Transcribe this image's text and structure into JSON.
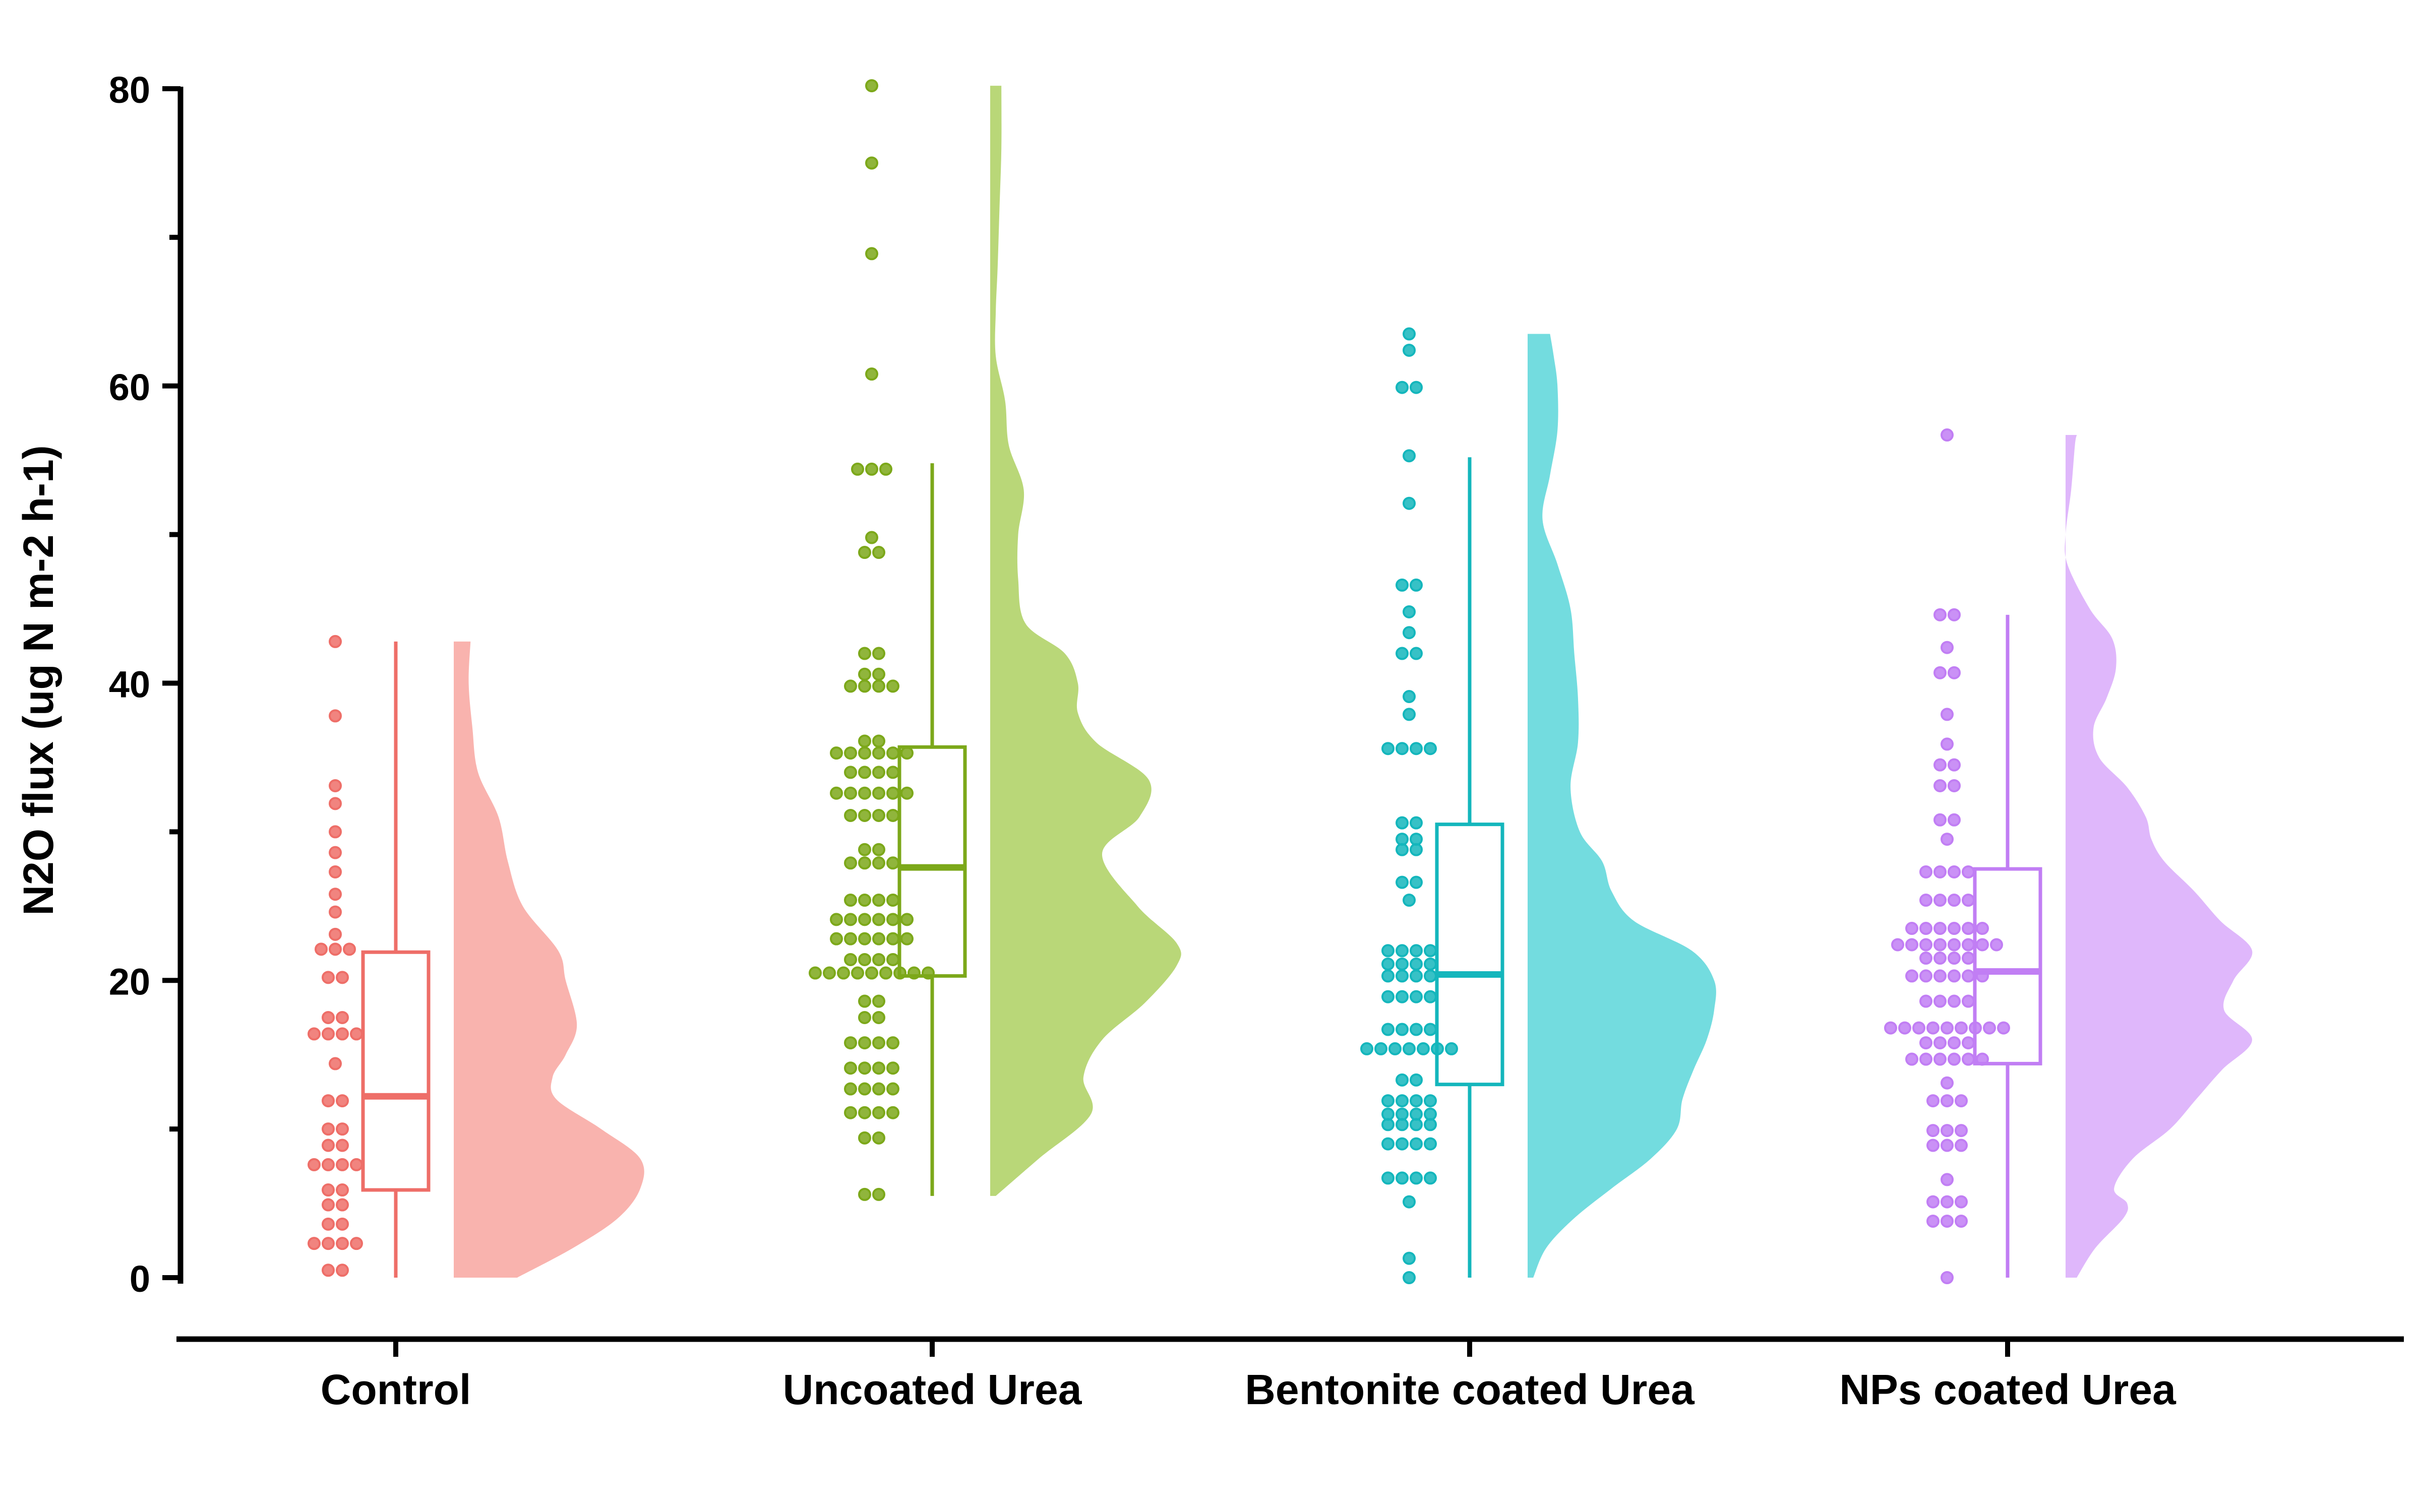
{
  "chart_data": {
    "type": "raincloud",
    "title": "",
    "xlabel": "",
    "ylabel": "N2O flux (ug N m-2 h-1)",
    "ylim": [
      0,
      80
    ],
    "yticks": [
      0,
      20,
      40,
      60,
      80
    ],
    "yticks_minor_step": 10,
    "grid": false,
    "legend": "none",
    "categories": [
      "Control",
      "Uncoated Urea",
      "Bentonite coated Urea",
      "NPs coated Urea"
    ],
    "series": [
      {
        "name": "Control",
        "color": "#ee6e68",
        "violin_color": "#f9b3ae",
        "box": {
          "min": 0.0,
          "q1": 5.9,
          "median": 12.2,
          "q3": 21.9,
          "max": 42.8
        },
        "violin_range": [
          0,
          42.8
        ],
        "density_profile": [
          [
            0,
            0.34
          ],
          [
            2,
            0.64
          ],
          [
            4,
            0.88
          ],
          [
            6,
            1.0
          ],
          [
            8,
            1.0
          ],
          [
            10,
            0.79
          ],
          [
            12,
            0.55
          ],
          [
            13.5,
            0.53
          ],
          [
            15,
            0.6
          ],
          [
            17,
            0.66
          ],
          [
            20,
            0.6
          ],
          [
            22,
            0.56
          ],
          [
            25,
            0.37
          ],
          [
            28,
            0.29
          ],
          [
            31,
            0.24
          ],
          [
            34,
            0.13
          ],
          [
            37,
            0.1
          ],
          [
            40,
            0.08
          ],
          [
            42.8,
            0.09
          ]
        ],
        "points": [
          {
            "y": 0.5,
            "n": 2
          },
          {
            "y": 2.3,
            "n": 4
          },
          {
            "y": 3.6,
            "n": 2
          },
          {
            "y": 4.9,
            "n": 2
          },
          {
            "y": 5.9,
            "n": 2
          },
          {
            "y": 7.6,
            "n": 4
          },
          {
            "y": 8.9,
            "n": 2
          },
          {
            "y": 10.0,
            "n": 2
          },
          {
            "y": 11.9,
            "n": 2
          },
          {
            "y": 14.4,
            "n": 1
          },
          {
            "y": 16.4,
            "n": 4
          },
          {
            "y": 17.5,
            "n": 2
          },
          {
            "y": 20.2,
            "n": 2
          },
          {
            "y": 22.1,
            "n": 3
          },
          {
            "y": 23.1,
            "n": 1
          },
          {
            "y": 24.6,
            "n": 1
          },
          {
            "y": 25.8,
            "n": 1
          },
          {
            "y": 27.3,
            "n": 1
          },
          {
            "y": 28.6,
            "n": 1
          },
          {
            "y": 30.0,
            "n": 1
          },
          {
            "y": 31.9,
            "n": 1
          },
          {
            "y": 33.1,
            "n": 1
          },
          {
            "y": 37.8,
            "n": 1
          },
          {
            "y": 42.8,
            "n": 1
          }
        ]
      },
      {
        "name": "Uncoated Urea",
        "color": "#7ca81a",
        "violin_color": "#b9d778",
        "box": {
          "min": 5.5,
          "q1": 20.3,
          "median": 27.6,
          "q3": 35.7,
          "max": 54.8
        },
        "violin_range": [
          5.5,
          80.2
        ],
        "density_profile": [
          [
            5.5,
            0.03
          ],
          [
            8,
            0.26
          ],
          [
            11,
            0.54
          ],
          [
            13.5,
            0.5
          ],
          [
            16,
            0.6
          ],
          [
            18.5,
            0.83
          ],
          [
            21,
            1.0
          ],
          [
            22.5,
            1.0
          ],
          [
            25,
            0.79
          ],
          [
            28.5,
            0.6
          ],
          [
            31,
            0.8
          ],
          [
            33.5,
            0.85
          ],
          [
            36,
            0.57
          ],
          [
            38,
            0.47
          ],
          [
            40,
            0.47
          ],
          [
            42,
            0.4
          ],
          [
            44,
            0.19
          ],
          [
            47,
            0.15
          ],
          [
            50,
            0.15
          ],
          [
            53,
            0.18
          ],
          [
            56,
            0.1
          ],
          [
            59,
            0.08
          ],
          [
            62,
            0.03
          ],
          [
            65,
            0.03
          ],
          [
            68,
            0.04
          ],
          [
            72,
            0.05
          ],
          [
            76,
            0.06
          ],
          [
            80.2,
            0.06
          ]
        ],
        "points": [
          {
            "y": 5.6,
            "n": 2
          },
          {
            "y": 9.4,
            "n": 2
          },
          {
            "y": 11.1,
            "n": 4
          },
          {
            "y": 12.7,
            "n": 4
          },
          {
            "y": 14.1,
            "n": 4
          },
          {
            "y": 15.8,
            "n": 4
          },
          {
            "y": 17.5,
            "n": 2
          },
          {
            "y": 18.6,
            "n": 2
          },
          {
            "y": 20.5,
            "n": 9
          },
          {
            "y": 21.4,
            "n": 4
          },
          {
            "y": 22.8,
            "n": 6
          },
          {
            "y": 24.1,
            "n": 6
          },
          {
            "y": 25.4,
            "n": 4
          },
          {
            "y": 27.9,
            "n": 4
          },
          {
            "y": 28.8,
            "n": 2
          },
          {
            "y": 31.1,
            "n": 4
          },
          {
            "y": 32.6,
            "n": 6
          },
          {
            "y": 34.0,
            "n": 4
          },
          {
            "y": 35.3,
            "n": 6
          },
          {
            "y": 36.1,
            "n": 2
          },
          {
            "y": 39.8,
            "n": 4
          },
          {
            "y": 40.6,
            "n": 2
          },
          {
            "y": 42.0,
            "n": 2
          },
          {
            "y": 48.8,
            "n": 2
          },
          {
            "y": 49.8,
            "n": 1
          },
          {
            "y": 54.4,
            "n": 3
          },
          {
            "y": 60.8,
            "n": 1
          },
          {
            "y": 68.9,
            "n": 1
          },
          {
            "y": 75.0,
            "n": 1
          },
          {
            "y": 80.2,
            "n": 1
          }
        ]
      },
      {
        "name": "Bentonite coated Urea",
        "color": "#14b6bc",
        "violin_color": "#73dcdf",
        "box": {
          "min": 0.0,
          "q1": 13.0,
          "median": 20.4,
          "q3": 30.5,
          "max": 55.2
        },
        "violin_range": [
          0,
          63.5
        ],
        "density_profile": [
          [
            0,
            0.03
          ],
          [
            2,
            0.1
          ],
          [
            4,
            0.25
          ],
          [
            6,
            0.45
          ],
          [
            8,
            0.66
          ],
          [
            10,
            0.8
          ],
          [
            12,
            0.83
          ],
          [
            14,
            0.89
          ],
          [
            16,
            0.96
          ],
          [
            18,
            1.0
          ],
          [
            20,
            1.0
          ],
          [
            22,
            0.88
          ],
          [
            24,
            0.57
          ],
          [
            26,
            0.45
          ],
          [
            28,
            0.4
          ],
          [
            30,
            0.28
          ],
          [
            33,
            0.23
          ],
          [
            36,
            0.27
          ],
          [
            39,
            0.27
          ],
          [
            42,
            0.25
          ],
          [
            45,
            0.23
          ],
          [
            48,
            0.16
          ],
          [
            51,
            0.08
          ],
          [
            54,
            0.12
          ],
          [
            57,
            0.16
          ],
          [
            60,
            0.16
          ],
          [
            62,
            0.14
          ],
          [
            63.5,
            0.12
          ]
        ],
        "points": [
          {
            "y": 0.0,
            "n": 1
          },
          {
            "y": 1.3,
            "n": 1
          },
          {
            "y": 5.1,
            "n": 1
          },
          {
            "y": 6.7,
            "n": 4
          },
          {
            "y": 9.0,
            "n": 4
          },
          {
            "y": 10.3,
            "n": 4
          },
          {
            "y": 11.0,
            "n": 4
          },
          {
            "y": 11.9,
            "n": 4
          },
          {
            "y": 13.3,
            "n": 2
          },
          {
            "y": 15.4,
            "n": 7
          },
          {
            "y": 16.7,
            "n": 4
          },
          {
            "y": 18.9,
            "n": 4
          },
          {
            "y": 20.3,
            "n": 4
          },
          {
            "y": 21.1,
            "n": 4
          },
          {
            "y": 22.0,
            "n": 4
          },
          {
            "y": 25.4,
            "n": 1
          },
          {
            "y": 26.6,
            "n": 2
          },
          {
            "y": 28.8,
            "n": 2
          },
          {
            "y": 29.5,
            "n": 2
          },
          {
            "y": 30.6,
            "n": 2
          },
          {
            "y": 35.6,
            "n": 4
          },
          {
            "y": 37.9,
            "n": 1
          },
          {
            "y": 39.1,
            "n": 1
          },
          {
            "y": 42.0,
            "n": 2
          },
          {
            "y": 43.4,
            "n": 1
          },
          {
            "y": 44.8,
            "n": 1
          },
          {
            "y": 46.6,
            "n": 2
          },
          {
            "y": 52.1,
            "n": 1
          },
          {
            "y": 55.3,
            "n": 1
          },
          {
            "y": 59.9,
            "n": 2
          },
          {
            "y": 62.4,
            "n": 1
          },
          {
            "y": 63.5,
            "n": 1
          }
        ]
      },
      {
        "name": "NPs coated Urea",
        "color": "#c17ef4",
        "violin_color": "#dfb7fb",
        "box": {
          "min": 0.0,
          "q1": 14.4,
          "median": 20.6,
          "q3": 27.5,
          "max": 44.6
        },
        "violin_range": [
          0,
          56.7
        ],
        "density_profile": [
          [
            0,
            0.06
          ],
          [
            2,
            0.16
          ],
          [
            4,
            0.31
          ],
          [
            5,
            0.33
          ],
          [
            6,
            0.26
          ],
          [
            8,
            0.36
          ],
          [
            10,
            0.56
          ],
          [
            12,
            0.7
          ],
          [
            14,
            0.84
          ],
          [
            16,
            1.0
          ],
          [
            18,
            0.85
          ],
          [
            20,
            0.9
          ],
          [
            22,
            1.0
          ],
          [
            24,
            0.83
          ],
          [
            26,
            0.69
          ],
          [
            28,
            0.53
          ],
          [
            29.5,
            0.46
          ],
          [
            31,
            0.43
          ],
          [
            33,
            0.33
          ],
          [
            35,
            0.18
          ],
          [
            37,
            0.15
          ],
          [
            39,
            0.22
          ],
          [
            41,
            0.27
          ],
          [
            43,
            0.25
          ],
          [
            45,
            0.13
          ],
          [
            48,
            0.01
          ],
          [
            50,
            0.0
          ],
          [
            53,
            0.03
          ],
          [
            56,
            0.05
          ],
          [
            56.7,
            0.06
          ]
        ],
        "points": [
          {
            "y": 0.0,
            "n": 1
          },
          {
            "y": 3.8,
            "n": 3
          },
          {
            "y": 5.1,
            "n": 3
          },
          {
            "y": 6.6,
            "n": 1
          },
          {
            "y": 8.9,
            "n": 3
          },
          {
            "y": 9.9,
            "n": 3
          },
          {
            "y": 11.9,
            "n": 3
          },
          {
            "y": 13.1,
            "n": 1
          },
          {
            "y": 14.7,
            "n": 6
          },
          {
            "y": 15.8,
            "n": 4
          },
          {
            "y": 16.8,
            "n": 9
          },
          {
            "y": 18.6,
            "n": 4
          },
          {
            "y": 20.3,
            "n": 6
          },
          {
            "y": 21.5,
            "n": 4
          },
          {
            "y": 22.4,
            "n": 8
          },
          {
            "y": 23.5,
            "n": 6
          },
          {
            "y": 25.4,
            "n": 4
          },
          {
            "y": 27.3,
            "n": 4
          },
          {
            "y": 29.5,
            "n": 1
          },
          {
            "y": 30.8,
            "n": 2
          },
          {
            "y": 33.1,
            "n": 2
          },
          {
            "y": 34.5,
            "n": 2
          },
          {
            "y": 35.9,
            "n": 1
          },
          {
            "y": 37.9,
            "n": 1
          },
          {
            "y": 40.7,
            "n": 2
          },
          {
            "y": 42.4,
            "n": 1
          },
          {
            "y": 44.6,
            "n": 2
          },
          {
            "y": 56.7,
            "n": 1
          }
        ]
      }
    ]
  }
}
